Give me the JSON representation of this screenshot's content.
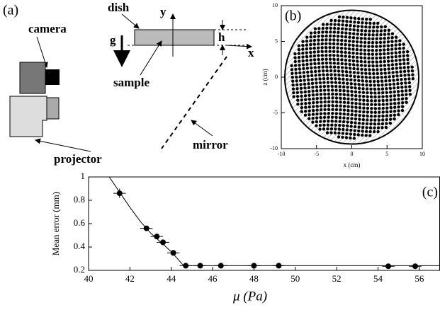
{
  "diagram": {
    "panel": "(a)",
    "camera": "camera",
    "dish": "dish",
    "y": "y",
    "g": "g",
    "h": "h",
    "x": "x",
    "sample": "sample",
    "projector": "projector",
    "mirror": "mirror"
  },
  "chart_data": [
    {
      "type": "scatter",
      "label": "(b)",
      "xlabel": "x (cm)",
      "ylabel": "z (cm)",
      "xlim": [
        -10,
        10
      ],
      "ylim": [
        -10,
        10
      ],
      "xticks": [
        -10,
        -5,
        0,
        5,
        10
      ],
      "yticks": [
        -10,
        -5,
        0,
        5,
        10
      ]
    },
    {
      "type": "errorbar",
      "label": "(c)",
      "xlabel": "μ (Pa)",
      "ylabel": "Mean error (mm)",
      "xlim": [
        40,
        57
      ],
      "ylim": [
        0.2,
        1
      ],
      "xticks": [
        40,
        42,
        44,
        46,
        48,
        50,
        52,
        54,
        56
      ],
      "yticks": [
        0.2,
        0.4,
        0.6,
        0.8,
        1
      ],
      "color": "#000000",
      "points": {
        "x": [
          41.5,
          42.8,
          43.3,
          43.6,
          44.1,
          44.7,
          45.4,
          46.4,
          48,
          49.2,
          54.5,
          55.8
        ],
        "y": [
          0.86,
          0.56,
          0.49,
          0.44,
          0.35,
          0.24,
          0.24,
          0.24,
          0.24,
          0.24,
          0.235,
          0.235
        ],
        "xerr": [
          0.3,
          0.3,
          0.3,
          0.3,
          0.3,
          0.3,
          0.3,
          0.3,
          0.3,
          0.3,
          0.3,
          0.3
        ],
        "yerr": [
          0.04,
          0.02,
          0.02,
          0.02,
          0.02,
          0.01,
          0.01,
          0.01,
          0.01,
          0.01,
          0.01,
          0.01
        ]
      },
      "fit": {
        "x": [
          41,
          41.5,
          42,
          42.5,
          43,
          43.5,
          44,
          44.6,
          57
        ],
        "y": [
          1,
          0.87,
          0.74,
          0.62,
          0.52,
          0.44,
          0.36,
          0.24,
          0.24
        ]
      }
    }
  ]
}
